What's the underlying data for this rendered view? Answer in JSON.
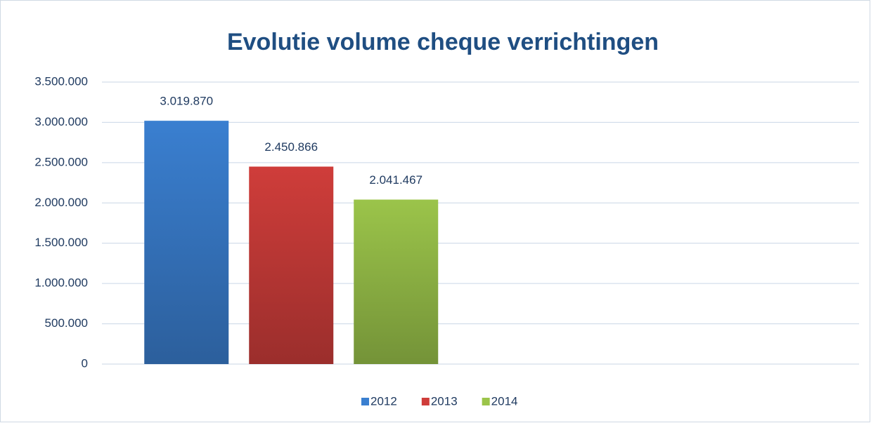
{
  "chart_data": {
    "type": "bar",
    "title": "Evolutie volume cheque verrichtingen",
    "categories": [
      null,
      null
    ],
    "series": [
      {
        "name": "2012",
        "color": "#3a7fd0",
        "values": [
          3019870,
          null
        ],
        "value_labels": [
          "3.019.870",
          null
        ]
      },
      {
        "name": "2013",
        "color": "#cf3d3a",
        "values": [
          2450866,
          null
        ],
        "value_labels": [
          "2.450.866",
          null
        ]
      },
      {
        "name": "2014",
        "color": "#9bc44a",
        "values": [
          2041467,
          null
        ],
        "value_labels": [
          "2.041.467",
          null
        ]
      }
    ],
    "ylim": [
      0,
      3500000
    ],
    "yticks": [
      0,
      {
        "value": 500000,
        "label": "500.000"
      },
      {
        "value": 1000000,
        "label": "1.000.000"
      },
      {
        "value": 1500000,
        "label": "1.500.000"
      },
      {
        "value": 2000000,
        "label": "2.000.000"
      },
      {
        "value": 2500000,
        "label": "2.500.000"
      },
      {
        "value": 3000000,
        "label": "3.000.000"
      },
      {
        "value": 3500000,
        "label": "3.500.000"
      }
    ],
    "grid": true,
    "legend": "bottom"
  }
}
